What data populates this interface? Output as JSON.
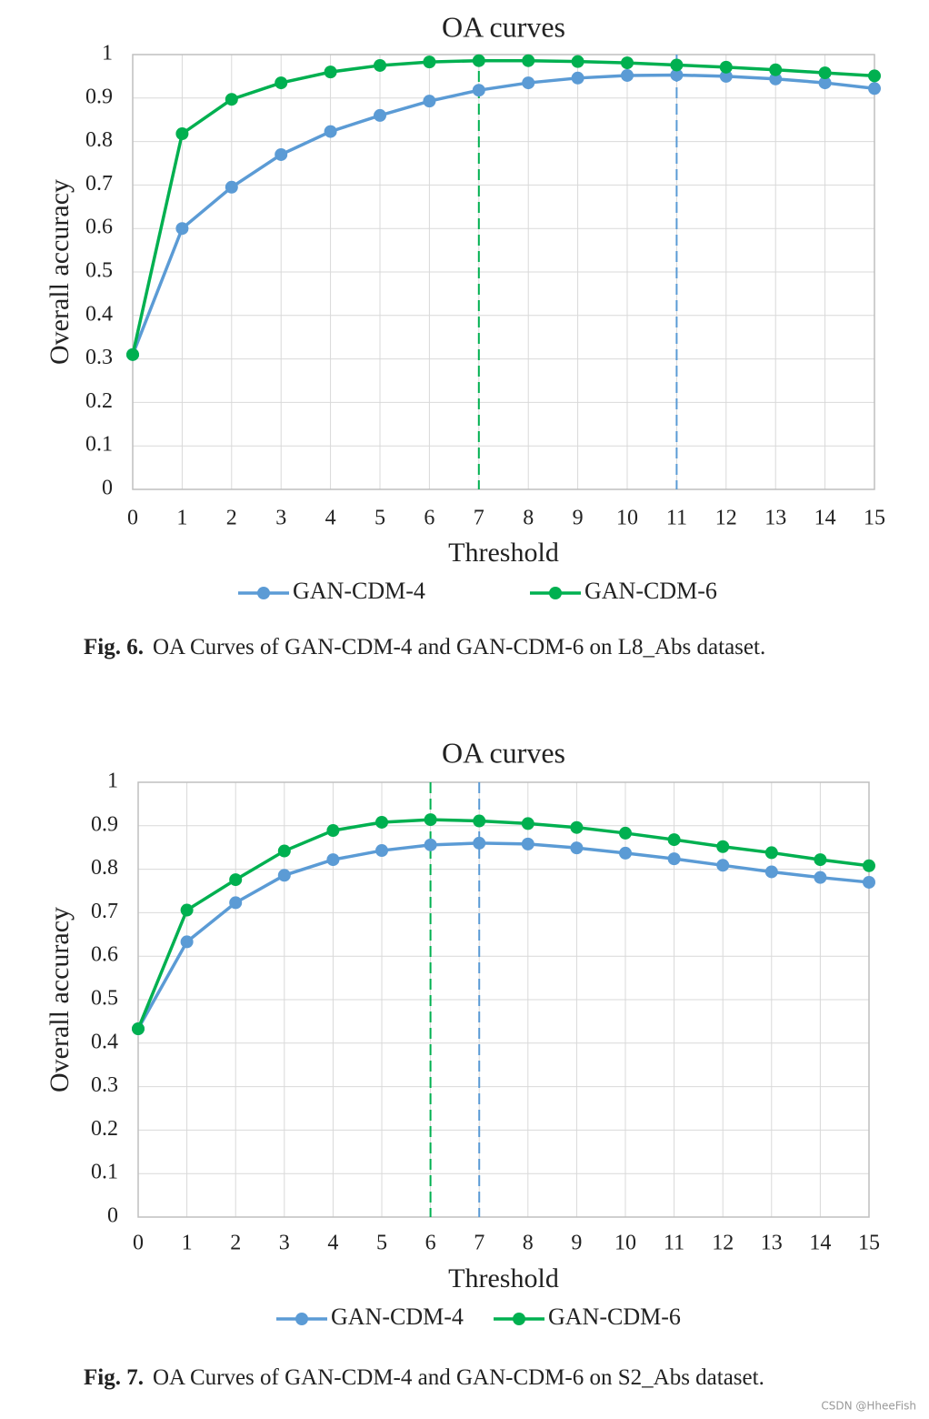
{
  "watermark": "CSDN @HheeFish",
  "chart_data": [
    {
      "type": "line",
      "title": "OA curves",
      "xlabel": "Threshold",
      "ylabel": "Overall accuracy",
      "x": [
        0,
        1,
        2,
        3,
        4,
        5,
        6,
        7,
        8,
        9,
        10,
        11,
        12,
        13,
        14,
        15
      ],
      "xlim": [
        0,
        15
      ],
      "xticks": [
        0,
        1,
        2,
        3,
        4,
        5,
        6,
        7,
        8,
        9,
        10,
        11,
        12,
        13,
        14,
        15
      ],
      "ylim": [
        0,
        1
      ],
      "yticks": [
        0,
        0.1,
        0.2,
        0.3,
        0.4,
        0.5,
        0.6,
        0.7,
        0.8,
        0.9,
        1
      ],
      "grid": true,
      "legend": "bottom",
      "series": [
        {
          "name": "GAN-CDM-4",
          "color": "#5b9bd5",
          "values": [
            0.31,
            0.6,
            0.695,
            0.77,
            0.823,
            0.86,
            0.893,
            0.918,
            0.935,
            0.946,
            0.952,
            0.953,
            0.95,
            0.944,
            0.935,
            0.922
          ]
        },
        {
          "name": "GAN-CDM-6",
          "color": "#00b050",
          "values": [
            0.31,
            0.818,
            0.897,
            0.935,
            0.96,
            0.975,
            0.983,
            0.986,
            0.986,
            0.984,
            0.981,
            0.976,
            0.971,
            0.965,
            0.958,
            0.951
          ]
        }
      ],
      "reference_lines": [
        {
          "x": 7,
          "color": "#00b050"
        },
        {
          "x": 11,
          "color": "#5b9bd5"
        }
      ],
      "figure_label": "Fig. 6.",
      "caption": "OA Curves of GAN-CDM-4 and GAN-CDM-6 on L8_Abs dataset."
    },
    {
      "type": "line",
      "title": "OA curves",
      "xlabel": "Threshold",
      "ylabel": "Overall accuracy",
      "x": [
        0,
        1,
        2,
        3,
        4,
        5,
        6,
        7,
        8,
        9,
        10,
        11,
        12,
        13,
        14,
        15
      ],
      "xlim": [
        0,
        15
      ],
      "xticks": [
        0,
        1,
        2,
        3,
        4,
        5,
        6,
        7,
        8,
        9,
        10,
        11,
        12,
        13,
        14,
        15
      ],
      "ylim": [
        0,
        1
      ],
      "yticks": [
        0,
        0.1,
        0.2,
        0.3,
        0.4,
        0.5,
        0.6,
        0.7,
        0.8,
        0.9,
        1
      ],
      "grid": true,
      "legend": "bottom",
      "series": [
        {
          "name": "GAN-CDM-4",
          "color": "#5b9bd5",
          "values": [
            0.433,
            0.633,
            0.723,
            0.786,
            0.822,
            0.843,
            0.856,
            0.86,
            0.858,
            0.849,
            0.837,
            0.824,
            0.809,
            0.794,
            0.781,
            0.77
          ]
        },
        {
          "name": "GAN-CDM-6",
          "color": "#00b050",
          "values": [
            0.433,
            0.706,
            0.776,
            0.842,
            0.889,
            0.908,
            0.914,
            0.911,
            0.905,
            0.896,
            0.883,
            0.868,
            0.852,
            0.838,
            0.822,
            0.808
          ]
        }
      ],
      "reference_lines": [
        {
          "x": 6,
          "color": "#00b050"
        },
        {
          "x": 7,
          "color": "#5b9bd5"
        }
      ],
      "figure_label": "Fig. 7.",
      "caption": "OA Curves of GAN-CDM-4 and GAN-CDM-6 on S2_Abs dataset."
    }
  ]
}
